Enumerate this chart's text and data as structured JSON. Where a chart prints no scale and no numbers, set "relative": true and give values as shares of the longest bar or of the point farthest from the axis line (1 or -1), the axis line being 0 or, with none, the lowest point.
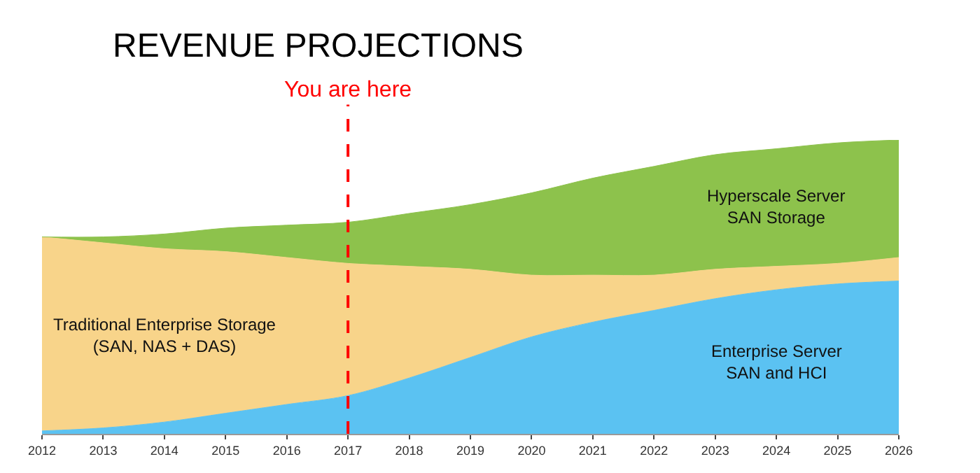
{
  "chart_data": {
    "type": "area",
    "title": "REVENUE PROJECTIONS",
    "relative": true,
    "stacked": true,
    "x": [
      2012,
      2013,
      2014,
      2015,
      2016,
      2017,
      2018,
      2019,
      2020,
      2021,
      2022,
      2023,
      2024,
      2025,
      2026
    ],
    "xlim": [
      2012,
      2026
    ],
    "xticks": [
      2012,
      2013,
      2014,
      2015,
      2016,
      2017,
      2018,
      2019,
      2020,
      2021,
      2022,
      2023,
      2024,
      2025,
      2026
    ],
    "series": [
      {
        "name": "Enterprise Server SAN and HCI",
        "color": "#5bc2f2",
        "values": [
          0.01,
          0.02,
          0.04,
          0.07,
          0.1,
          0.13,
          0.19,
          0.26,
          0.33,
          0.38,
          0.42,
          0.46,
          0.49,
          0.51,
          0.52
        ]
      },
      {
        "name": "Traditional Enterprise Storage (SAN, NAS + DAS)",
        "color": "#f8d48a",
        "values": [
          0.66,
          0.63,
          0.59,
          0.55,
          0.5,
          0.45,
          0.38,
          0.3,
          0.21,
          0.16,
          0.12,
          0.1,
          0.08,
          0.07,
          0.08
        ]
      },
      {
        "name": "Hyperscale Server SAN Storage",
        "color": "#8dc24c",
        "values": [
          0,
          0.02,
          0.05,
          0.08,
          0.11,
          0.14,
          0.18,
          0.22,
          0.28,
          0.33,
          0.37,
          0.39,
          0.4,
          0.41,
          0.4
        ]
      }
    ],
    "ref_lines": [
      {
        "axis": "x",
        "value": 2017,
        "label": "You are here",
        "color": "#ff0000",
        "line_style": "dashed"
      }
    ],
    "grid": false,
    "legend": false
  }
}
